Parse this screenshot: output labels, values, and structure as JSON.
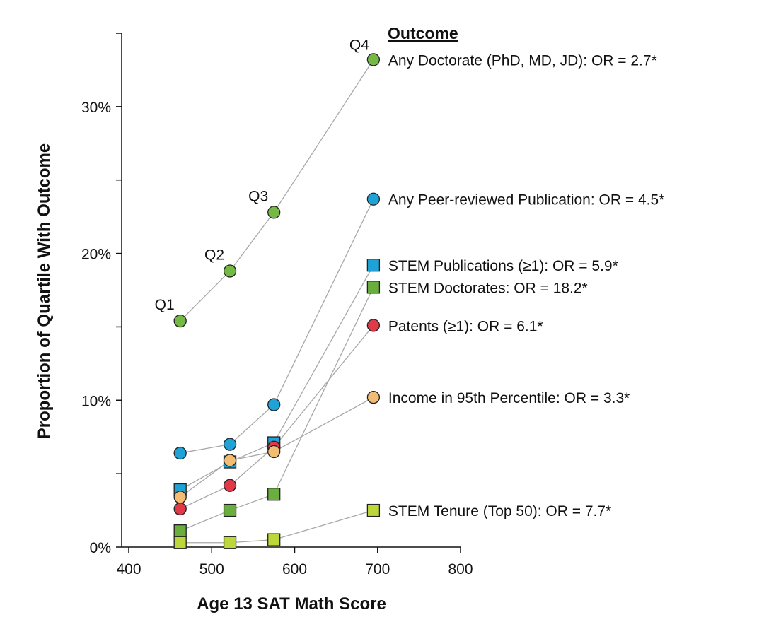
{
  "chart_data": {
    "type": "scatter",
    "xlabel": "Age 13 SAT Math Score",
    "ylabel": "Proportion of Quartile With Outcome",
    "xlim": [
      400,
      800
    ],
    "ylim": [
      0,
      35
    ],
    "xticks": [
      400,
      500,
      600,
      700,
      800
    ],
    "yticks": [
      0,
      10,
      20,
      30
    ],
    "ytick_labels": [
      "0%",
      "10%",
      "20%",
      "30%"
    ],
    "legend_title": "Outcome",
    "quartiles": [
      "Q1",
      "Q2",
      "Q3",
      "Q4"
    ],
    "series": [
      {
        "name": "Any Doctorate  (PhD, MD, JD): OR = 2.7*",
        "marker": "circle",
        "color": "#74b944",
        "points": [
          [
            462,
            15.4
          ],
          [
            522,
            18.8
          ],
          [
            575,
            22.8
          ],
          [
            695,
            33.2
          ]
        ]
      },
      {
        "name": "Any Peer-reviewed Publication: OR = 4.5*",
        "marker": "circle",
        "color": "#1fa3d6",
        "points": [
          [
            462,
            6.4
          ],
          [
            522,
            7.0
          ],
          [
            575,
            9.7
          ],
          [
            695,
            23.7
          ]
        ]
      },
      {
        "name": "STEM Publications (≥1): OR = 5.9*",
        "marker": "square",
        "color": "#1fa3d6",
        "points": [
          [
            462,
            3.9
          ],
          [
            522,
            5.8
          ],
          [
            575,
            7.1
          ],
          [
            695,
            19.2
          ]
        ]
      },
      {
        "name": "STEM Doctorates: OR = 18.2*",
        "marker": "square",
        "color": "#6aae3e",
        "points": [
          [
            462,
            1.1
          ],
          [
            522,
            2.5
          ],
          [
            575,
            3.6
          ],
          [
            695,
            17.7
          ]
        ]
      },
      {
        "name": "Patents (≥1): OR = 6.1*",
        "marker": "circle",
        "color": "#e0394a",
        "points": [
          [
            462,
            2.6
          ],
          [
            522,
            4.2
          ],
          [
            575,
            6.8
          ],
          [
            695,
            15.1
          ]
        ]
      },
      {
        "name": "Income in 95th Percentile: OR = 3.3*",
        "marker": "circle",
        "color": "#f3bc72",
        "points": [
          [
            462,
            3.4
          ],
          [
            522,
            5.9
          ],
          [
            575,
            6.5
          ],
          [
            695,
            10.2
          ]
        ]
      },
      {
        "name": "STEM Tenure (Top 50): OR = 7.7*",
        "marker": "square",
        "color": "#bcd739",
        "points": [
          [
            462,
            0.3
          ],
          [
            522,
            0.3
          ],
          [
            575,
            0.5
          ],
          [
            695,
            2.5
          ]
        ]
      }
    ]
  }
}
